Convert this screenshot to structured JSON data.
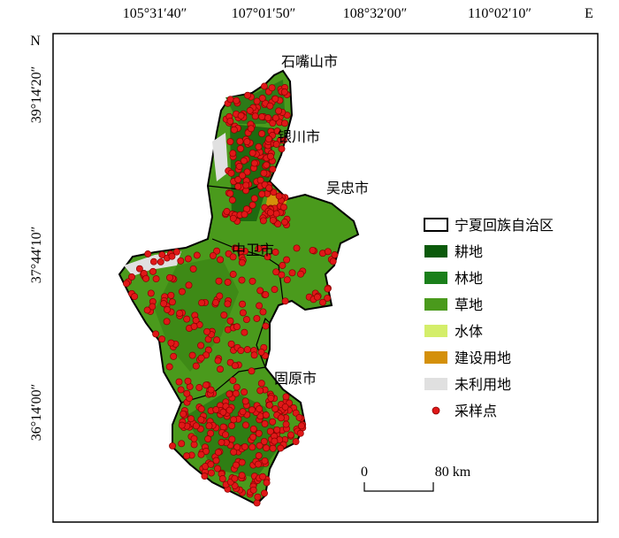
{
  "map": {
    "x_ticks": [
      "105°31′40″",
      "107°01′50″",
      "108°32′00″",
      "110°02′10″"
    ],
    "east_label": "E",
    "north_label": "N",
    "y_ticks": [
      "39°14′20″",
      "37°44′10″",
      "36°14′00″"
    ],
    "cities": [
      "石嘴山市",
      "银川市",
      "吴忠市",
      "中卫市",
      "固原市"
    ],
    "legend": [
      "宁夏回族自治区",
      "耕地",
      "林地",
      "草地",
      "水体",
      "建设用地",
      "未利用地",
      "采样点"
    ],
    "scale_bar": {
      "start": "0",
      "end": "80 km"
    }
  }
}
